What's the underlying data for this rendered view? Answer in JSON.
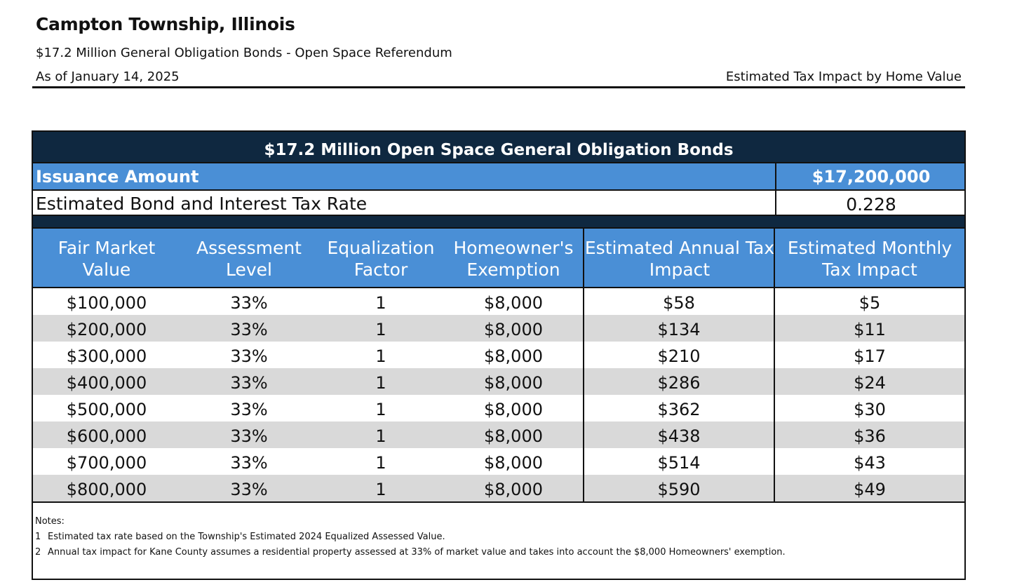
{
  "header": {
    "title": "Campton Township, Illinois",
    "subtitle": "$17.2 Million General Obligation Bonds - Open Space Referendum",
    "as_of": "As of January 14, 2025",
    "right_caption": "Estimated Tax Impact by Home Value"
  },
  "table": {
    "title": "$17.2 Million Open Space General Obligation Bonds",
    "issuance_label": "Issuance Amount",
    "issuance_value": "$17,200,000",
    "rate_label": "Estimated Bond and Interest Tax Rate",
    "rate_value": "0.228",
    "columns": [
      {
        "line1": "Fair Market",
        "line2": "Value"
      },
      {
        "line1": "Assessment",
        "line2": "Level"
      },
      {
        "line1": "Equalization",
        "line2": "Factor"
      },
      {
        "line1": "Homeowner's",
        "line2": "Exemption"
      },
      {
        "line1": "Estimated Annual Tax",
        "line2": "Impact"
      },
      {
        "line1": "Estimated Monthly",
        "line2": "Tax Impact"
      }
    ],
    "rows": [
      [
        "$100,000",
        "33%",
        "1",
        "$8,000",
        "$58",
        "$5"
      ],
      [
        "$200,000",
        "33%",
        "1",
        "$8,000",
        "$134",
        "$11"
      ],
      [
        "$300,000",
        "33%",
        "1",
        "$8,000",
        "$210",
        "$17"
      ],
      [
        "$400,000",
        "33%",
        "1",
        "$8,000",
        "$286",
        "$24"
      ],
      [
        "$500,000",
        "33%",
        "1",
        "$8,000",
        "$362",
        "$30"
      ],
      [
        "$600,000",
        "33%",
        "1",
        "$8,000",
        "$438",
        "$36"
      ],
      [
        "$700,000",
        "33%",
        "1",
        "$8,000",
        "$514",
        "$43"
      ],
      [
        "$800,000",
        "33%",
        "1",
        "$8,000",
        "$590",
        "$49"
      ]
    ]
  },
  "notes": {
    "heading": "Notes:",
    "items": [
      {
        "num": "1",
        "text": "Estimated tax rate based on the Township's Estimated 2024 Equalized Assessed Value."
      },
      {
        "num": "2",
        "text": "Annual tax impact for Kane County assumes a residential property assessed at 33% of market value and takes into account the $8,000 Homeowners' exemption."
      }
    ]
  }
}
